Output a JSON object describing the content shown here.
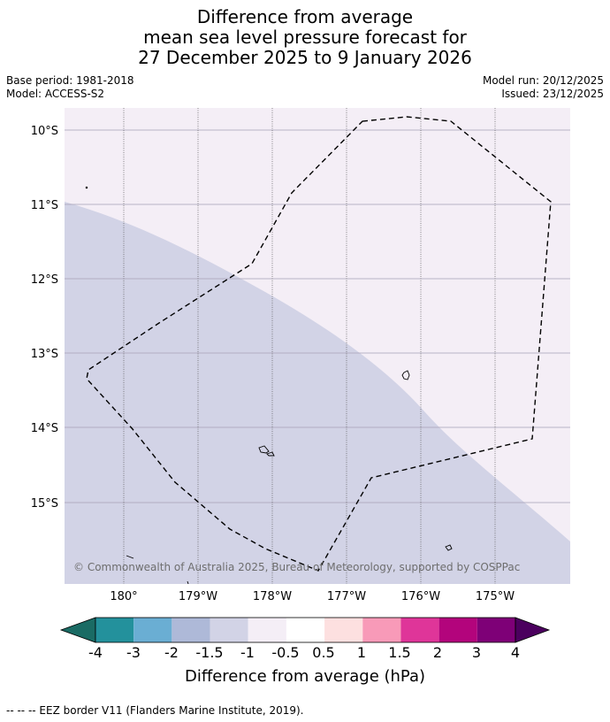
{
  "title": {
    "line1": "Difference from average",
    "line2": "mean sea level pressure forecast for",
    "line3": "27 December 2025 to 9 January 2026"
  },
  "meta": {
    "base_period": "Base period: 1981-2018",
    "model": "Model: ACCESS-S2",
    "model_run": "Model run: 20/12/2025",
    "issued": "Issued: 23/12/2025"
  },
  "map": {
    "lat_labels": [
      "10°S",
      "11°S",
      "12°S",
      "13°S",
      "14°S",
      "15°S"
    ],
    "lon_labels": [
      "180°",
      "179°W",
      "178°W",
      "177°W",
      "176°W",
      "175°W"
    ],
    "copyright": "© Commonwealth of Australia 2025, Bureau of Meteorology, supported by COSPPac",
    "colors": {
      "bin_minus_1_to_minus_0_5": "#f4eef6",
      "bin_minus_1_5_to_minus_1": "#d2d3e6"
    }
  },
  "colorbar": {
    "labels": [
      "-4",
      "-3",
      "-2",
      "-1.5",
      "-1",
      "-0.5",
      "0.5",
      "1",
      "1.5",
      "2",
      "3",
      "4"
    ],
    "colors": [
      "#1a6b64",
      "#23919c",
      "#6aaed3",
      "#aeb9d8",
      "#d2d3e6",
      "#f4eef6",
      "#ffffff",
      "#fde0e0",
      "#f89ab8",
      "#df3599",
      "#b3047c",
      "#7e0077",
      "#4b005e"
    ],
    "title": "Difference from average (hPa)"
  },
  "legend": {
    "eez": "--  --  -- EEZ border V11 (Flanders Marine Institute, 2019)."
  }
}
